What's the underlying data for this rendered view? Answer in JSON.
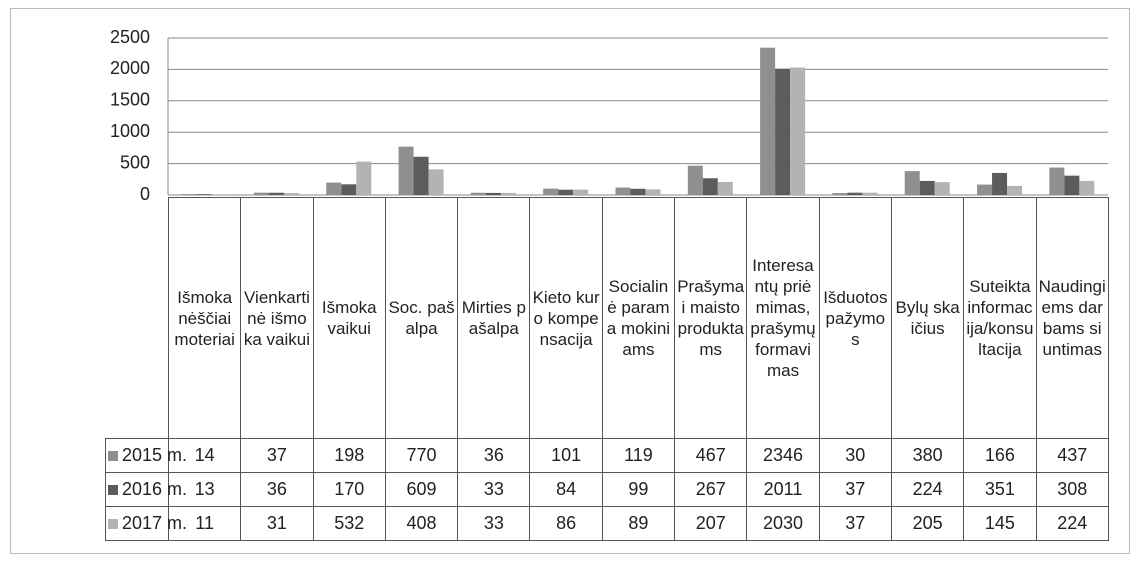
{
  "chart_data": {
    "type": "bar",
    "categories": [
      "Išmoka nėščiai moteriai",
      "Vienkartinė išmoka vaikui",
      "Išmoka vaikui",
      "Soc. pašalpa",
      "Mirties pašalpa",
      "Kieto kuro kompensacija",
      "Socialinė parama mokiniams",
      "Prašymai maisto produktams",
      "Interesantų priėmimas, prašymų formavimas",
      "Išduotos pažymos",
      "Bylų skaičius",
      "Suteikta informacija/konsultacija",
      "Naudingiems darbams siuntimas"
    ],
    "series": [
      {
        "name": "2015 m.",
        "color": "#8f8f8f",
        "values": [
          14,
          37,
          198,
          770,
          36,
          101,
          119,
          467,
          2346,
          30,
          380,
          166,
          437
        ]
      },
      {
        "name": "2016 m.",
        "color": "#5c5c5c",
        "values": [
          13,
          36,
          170,
          609,
          33,
          84,
          99,
          267,
          2011,
          37,
          224,
          351,
          308
        ]
      },
      {
        "name": "2017 m.",
        "color": "#b3b3b3",
        "values": [
          11,
          31,
          532,
          408,
          33,
          86,
          89,
          207,
          2030,
          37,
          205,
          145,
          224
        ]
      }
    ],
    "ylim": [
      0,
      2500
    ],
    "yticks": [
      0,
      500,
      1000,
      1500,
      2000,
      2500
    ],
    "grid": true
  }
}
